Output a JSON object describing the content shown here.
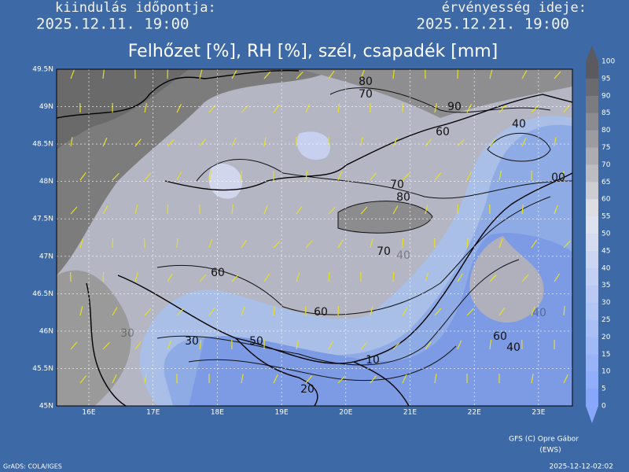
{
  "header": {
    "start_label": "kiindulás időpontja:",
    "start_time": "2025.12.11. 19:00",
    "valid_label": "érvényesség ideje:",
    "valid_time": "2025.12.21. 19:00",
    "title": "Felhőzet [%], RH [%], szél, csapadék [mm]"
  },
  "map": {
    "lat_labels": [
      "49.5N",
      "49N",
      "48.5N",
      "48N",
      "47.5N",
      "47N",
      "46.5N",
      "46N",
      "45.5N",
      "45N"
    ],
    "lon_labels": [
      "16E",
      "17E",
      "18E",
      "19E",
      "20E",
      "21E",
      "22E",
      "23E"
    ],
    "contour_labels": [
      80,
      70,
      90,
      60,
      40,
      "00",
      70,
      80,
      70,
      40,
      60,
      60,
      50,
      30,
      10,
      20,
      60,
      40,
      30,
      40
    ]
  },
  "colorbar": {
    "labels": [
      100,
      95,
      90,
      85,
      80,
      75,
      70,
      65,
      60,
      55,
      50,
      45,
      40,
      35,
      30,
      25,
      20,
      15,
      10,
      5,
      0
    ]
  },
  "footer": {
    "credit": "GFS (C) Opre Gábor",
    "credit_sub": "(EWS)",
    "software": "GrADS: COLA/IGES",
    "timestamp": "2025-12-12-02:02"
  }
}
